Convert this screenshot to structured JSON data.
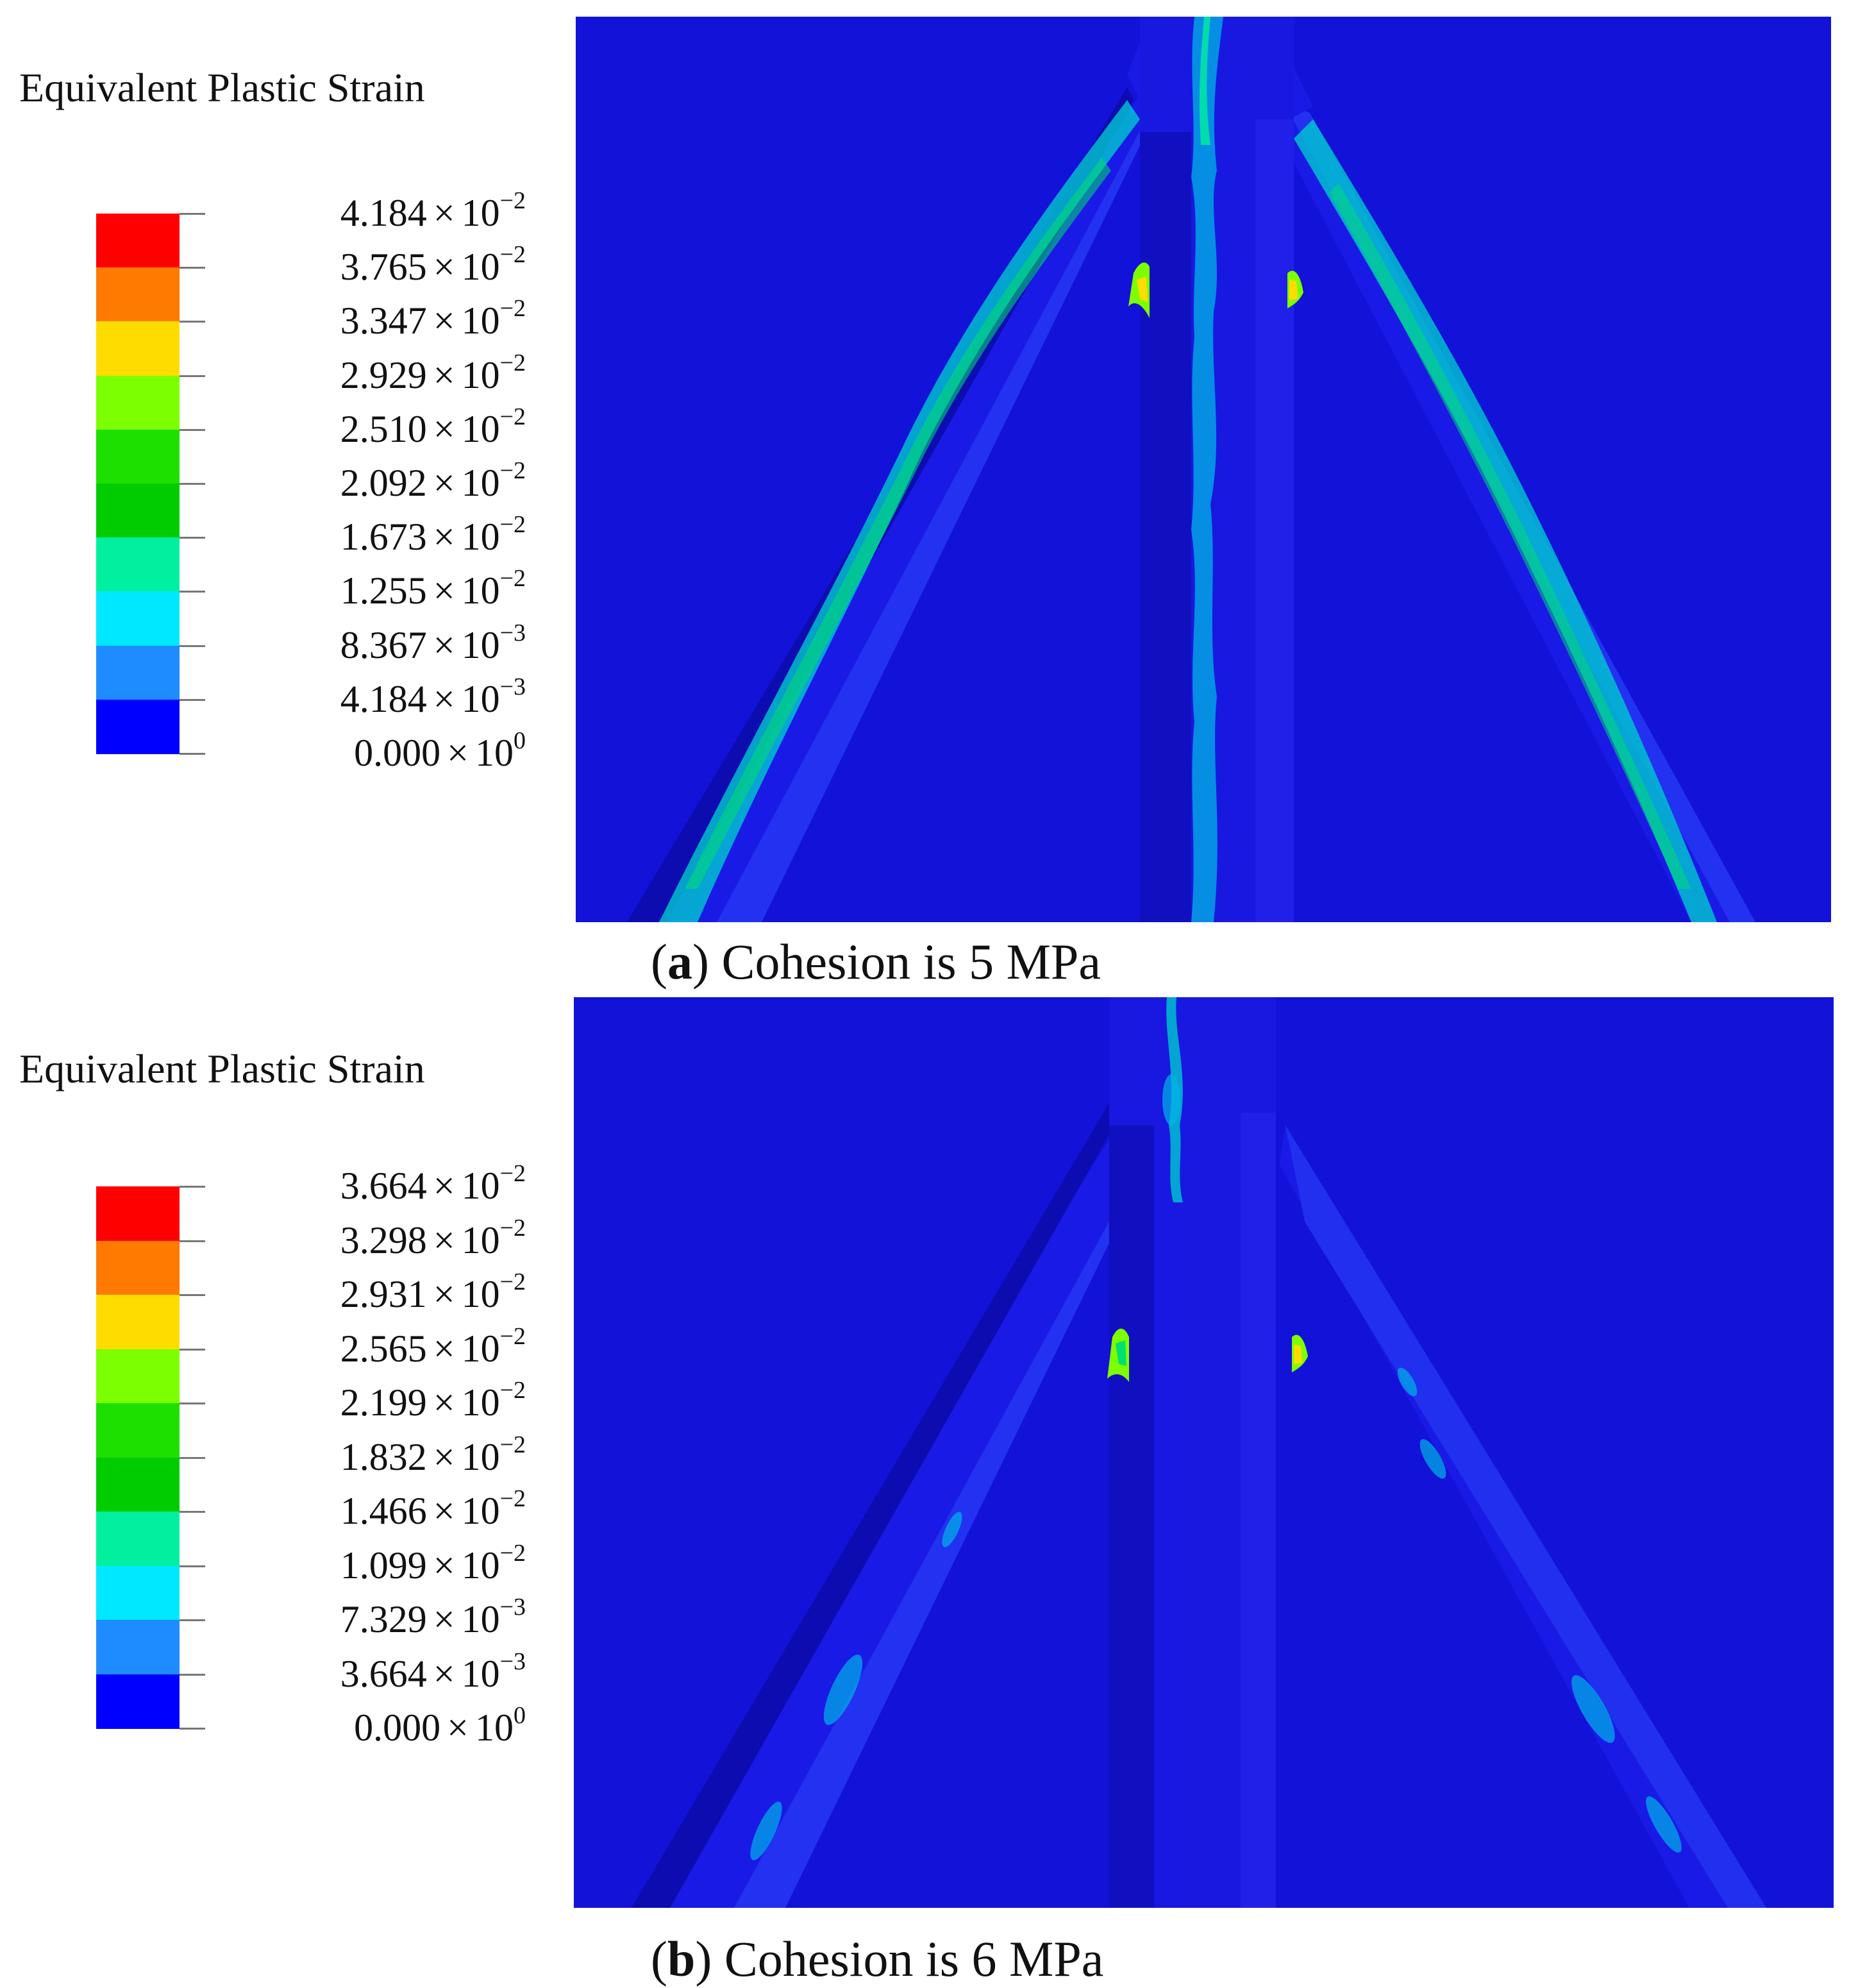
{
  "panels": [
    {
      "id": "a",
      "legend_title": "Equivalent Plastic Strain",
      "caption_letter": "a",
      "caption_text": "Cohesion is 5 MPa",
      "legend_levels": [
        {
          "mantissa": "4.184",
          "exponent": "−2"
        },
        {
          "mantissa": "3.765",
          "exponent": "−2"
        },
        {
          "mantissa": "3.347",
          "exponent": "−2"
        },
        {
          "mantissa": "2.929",
          "exponent": "−2"
        },
        {
          "mantissa": "2.510",
          "exponent": "−2"
        },
        {
          "mantissa": "2.092",
          "exponent": "−2"
        },
        {
          "mantissa": "1.673",
          "exponent": "−2"
        },
        {
          "mantissa": "1.255",
          "exponent": "−2"
        },
        {
          "mantissa": "8.367",
          "exponent": "−3"
        },
        {
          "mantissa": "4.184",
          "exponent": "−3"
        },
        {
          "mantissa": "0.000",
          "exponent": "0"
        }
      ]
    },
    {
      "id": "b",
      "legend_title": "Equivalent Plastic Strain",
      "caption_letter": "b",
      "caption_text": "Cohesion is 6 MPa",
      "legend_levels": [
        {
          "mantissa": "3.664",
          "exponent": "−2"
        },
        {
          "mantissa": "3.298",
          "exponent": "−2"
        },
        {
          "mantissa": "2.931",
          "exponent": "−2"
        },
        {
          "mantissa": "2.565",
          "exponent": "−2"
        },
        {
          "mantissa": "2.199",
          "exponent": "−2"
        },
        {
          "mantissa": "1.832",
          "exponent": "−2"
        },
        {
          "mantissa": "1.466",
          "exponent": "−2"
        },
        {
          "mantissa": "1.099",
          "exponent": "−2"
        },
        {
          "mantissa": "7.329",
          "exponent": "−3"
        },
        {
          "mantissa": "3.664",
          "exponent": "−3"
        },
        {
          "mantissa": "0.000",
          "exponent": "0"
        }
      ]
    }
  ],
  "times_symbol": "×",
  "base": "10",
  "colors": {
    "bands": [
      "#ff0000",
      "#ff7a00",
      "#ffdc00",
      "#7cff00",
      "#1ee000",
      "#00cc00",
      "#00f0a0",
      "#00e8ff",
      "#1e8cff",
      "#0000ff"
    ],
    "background": "#1212d8",
    "member_dark": "#0a0aa8",
    "member_mid": "#1a1ae6",
    "member_light": "#2a3cff"
  }
}
